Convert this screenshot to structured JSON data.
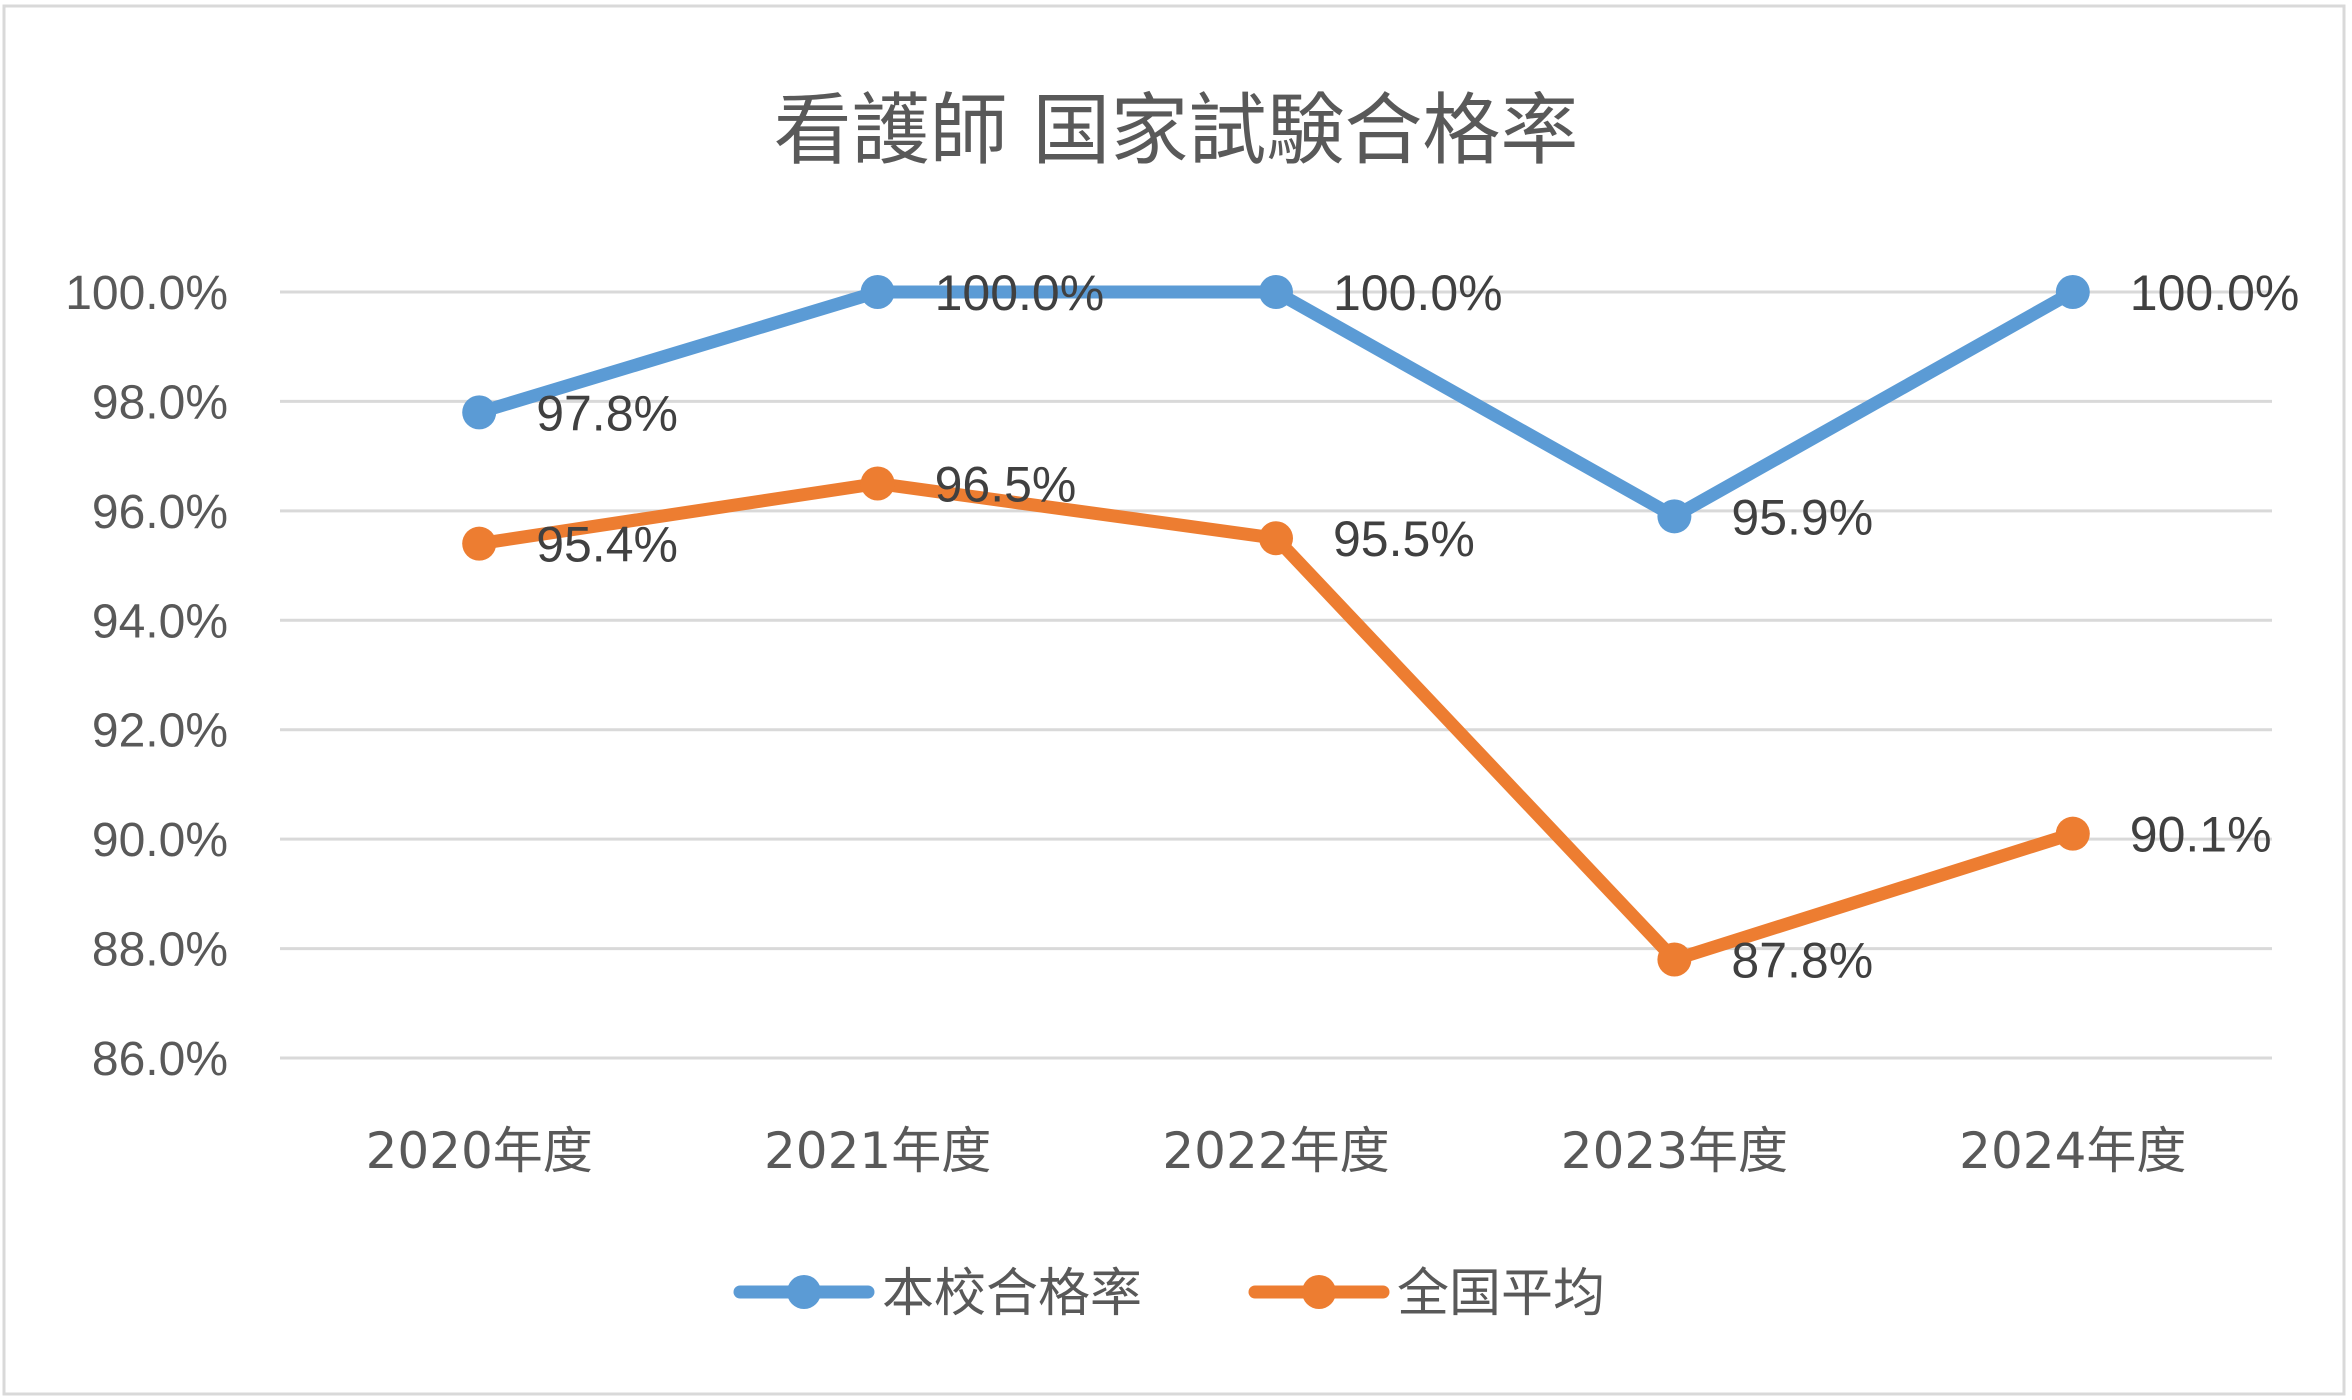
{
  "chart_data": {
    "type": "line",
    "title": "看護師 国家試験合格率",
    "xlabel": "",
    "ylabel": "",
    "categories": [
      "2020年度",
      "2021年度",
      "2022年度",
      "2023年度",
      "2024年度"
    ],
    "ylim": [
      86.0,
      100.0
    ],
    "yticks": [
      86.0,
      88.0,
      90.0,
      92.0,
      94.0,
      96.0,
      98.0,
      100.0
    ],
    "ytick_labels": [
      "86.0%",
      "88.0%",
      "90.0%",
      "92.0%",
      "94.0%",
      "96.0%",
      "98.0%",
      "100.0%"
    ],
    "grid": true,
    "legend_position": "bottom",
    "series": [
      {
        "name": "本校合格率",
        "color": "#5B9BD5",
        "values": [
          97.8,
          100.0,
          100.0,
          95.9,
          100.0
        ],
        "labels": [
          "97.8%",
          "100.0%",
          "100.0%",
          "95.9%",
          "100.0%"
        ]
      },
      {
        "name": "全国平均",
        "color": "#ED7D31",
        "values": [
          95.4,
          96.5,
          95.5,
          87.8,
          90.1
        ],
        "labels": [
          "95.4%",
          "96.5%",
          "95.5%",
          "87.8%",
          "90.1%"
        ]
      }
    ]
  }
}
